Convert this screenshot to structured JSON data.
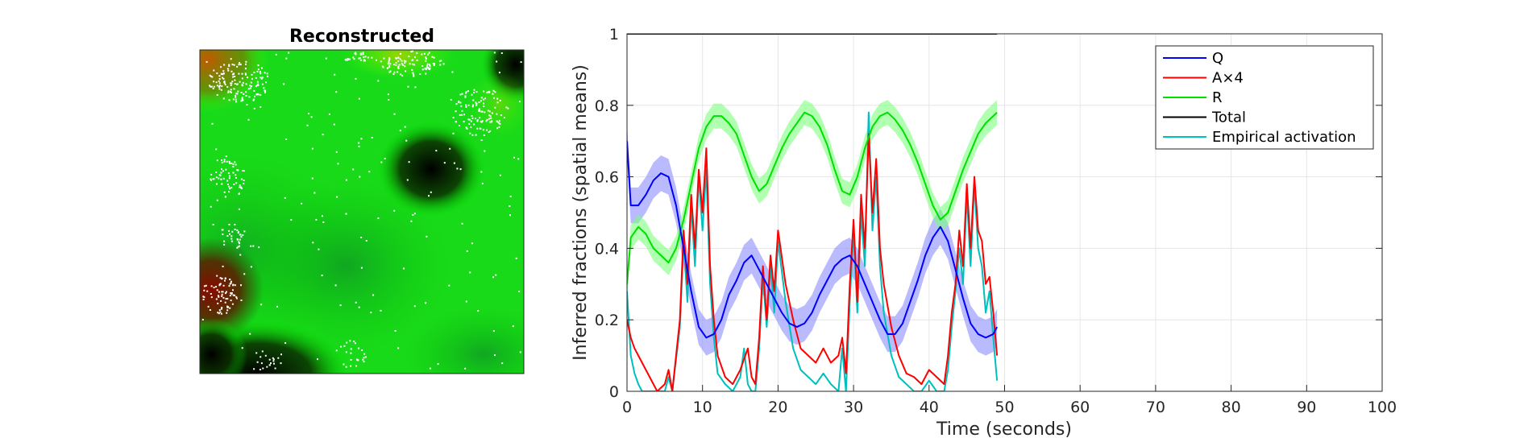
{
  "image_panel": {
    "title": "Reconstructed"
  },
  "chart_data": {
    "type": "line",
    "xlabel": "Time (seconds)",
    "ylabel": "Inferred fractions (spatial means)",
    "xlim": [
      0,
      100
    ],
    "ylim": [
      0,
      1
    ],
    "xticks": [
      0,
      10,
      20,
      30,
      40,
      50,
      60,
      70,
      80,
      90,
      100
    ],
    "yticks": [
      0,
      0.2,
      0.4,
      0.6,
      0.8,
      1
    ],
    "xtick_labels": [
      "0",
      "10",
      "20",
      "30",
      "40",
      "50",
      "60",
      "70",
      "80",
      "90",
      "100"
    ],
    "ytick_labels": [
      "0",
      "0.2",
      "0.4",
      "0.6",
      "0.8",
      "1"
    ],
    "grid": true,
    "legend_position": "top-right",
    "series": [
      {
        "name": "Q",
        "color": "#0000ff",
        "band_color": "#8c8cff",
        "x": [
          0,
          0.5,
          1.5,
          2.5,
          3.5,
          4.5,
          5.5,
          6.5,
          7.5,
          8.5,
          9.5,
          10.5,
          11.5,
          12.5,
          13.5,
          14.5,
          15.5,
          16.5,
          17.5,
          18.5,
          19.5,
          20.5,
          21.5,
          22.5,
          23.5,
          24.5,
          25.5,
          26.5,
          27.5,
          28.5,
          29.5,
          30.5,
          31.5,
          32.5,
          33.5,
          34.5,
          35.5,
          36.5,
          37.5,
          38.5,
          39.5,
          40.5,
          41.5,
          42.5,
          43.5,
          44.5,
          45.5,
          46.5,
          47.5,
          48.5,
          49
        ],
        "y": [
          0.7,
          0.52,
          0.52,
          0.55,
          0.59,
          0.61,
          0.6,
          0.52,
          0.4,
          0.28,
          0.18,
          0.15,
          0.16,
          0.2,
          0.27,
          0.31,
          0.36,
          0.38,
          0.34,
          0.3,
          0.26,
          0.22,
          0.19,
          0.18,
          0.19,
          0.22,
          0.27,
          0.31,
          0.35,
          0.37,
          0.38,
          0.35,
          0.3,
          0.25,
          0.2,
          0.16,
          0.16,
          0.19,
          0.25,
          0.31,
          0.38,
          0.43,
          0.46,
          0.42,
          0.34,
          0.26,
          0.19,
          0.16,
          0.15,
          0.16,
          0.18
        ],
        "band": 0.05
      },
      {
        "name": "A×4",
        "color": "#ff0000",
        "x": [
          0,
          0.5,
          1,
          2,
          3,
          4,
          5,
          5.5,
          6,
          7,
          7.5,
          8,
          8.5,
          9,
          9.5,
          10,
          10.5,
          11,
          11.5,
          12,
          13,
          14,
          15,
          16,
          16.5,
          17,
          17.5,
          18,
          18.5,
          19,
          19.5,
          20,
          21,
          22,
          23,
          24,
          25,
          26,
          27,
          28,
          28.5,
          29,
          29.5,
          30,
          30.5,
          31,
          31.5,
          32,
          32.5,
          33,
          33.5,
          34,
          35,
          36,
          37,
          38,
          39,
          40,
          41,
          42,
          42.5,
          43,
          43.5,
          44,
          44.5,
          45,
          45.5,
          46,
          46.5,
          47,
          47.5,
          48,
          48.5,
          49
        ],
        "y": [
          0.2,
          0.15,
          0.12,
          0.08,
          0.04,
          0.0,
          0.02,
          0.06,
          0.0,
          0.2,
          0.45,
          0.3,
          0.55,
          0.4,
          0.62,
          0.5,
          0.68,
          0.35,
          0.2,
          0.1,
          0.04,
          0.02,
          0.06,
          0.12,
          0.04,
          0.02,
          0.15,
          0.35,
          0.2,
          0.38,
          0.28,
          0.45,
          0.3,
          0.2,
          0.12,
          0.1,
          0.08,
          0.12,
          0.08,
          0.1,
          0.15,
          0.05,
          0.3,
          0.48,
          0.25,
          0.55,
          0.4,
          0.72,
          0.5,
          0.65,
          0.4,
          0.3,
          0.18,
          0.1,
          0.05,
          0.04,
          0.02,
          0.06,
          0.04,
          0.02,
          0.1,
          0.22,
          0.3,
          0.45,
          0.35,
          0.58,
          0.4,
          0.6,
          0.45,
          0.42,
          0.3,
          0.32,
          0.22,
          0.1
        ]
      },
      {
        "name": "R",
        "color": "#00e000",
        "band_color": "#7dff7d",
        "x": [
          0,
          0.5,
          1.5,
          2.5,
          3.5,
          4.5,
          5.5,
          6.5,
          7.5,
          8.5,
          9.5,
          10.5,
          11.5,
          12.5,
          13.5,
          14.5,
          15.5,
          16.5,
          17.5,
          18.5,
          19.5,
          20.5,
          21.5,
          22.5,
          23.5,
          24.5,
          25.5,
          26.5,
          27.5,
          28.5,
          29.5,
          30.5,
          31.5,
          32.5,
          33.5,
          34.5,
          35.5,
          36.5,
          37.5,
          38.5,
          39.5,
          40.5,
          41.5,
          42.5,
          43.5,
          44.5,
          45.5,
          46.5,
          47.5,
          48.5,
          49
        ],
        "y": [
          0.3,
          0.43,
          0.46,
          0.44,
          0.4,
          0.38,
          0.36,
          0.4,
          0.48,
          0.58,
          0.68,
          0.74,
          0.77,
          0.77,
          0.75,
          0.72,
          0.66,
          0.6,
          0.56,
          0.58,
          0.63,
          0.68,
          0.72,
          0.75,
          0.78,
          0.77,
          0.74,
          0.69,
          0.62,
          0.56,
          0.55,
          0.6,
          0.68,
          0.74,
          0.77,
          0.78,
          0.76,
          0.73,
          0.69,
          0.64,
          0.58,
          0.52,
          0.48,
          0.5,
          0.56,
          0.62,
          0.67,
          0.72,
          0.75,
          0.77,
          0.78
        ],
        "band": 0.035
      },
      {
        "name": "Total",
        "color": "#000000",
        "x": [
          0,
          49
        ],
        "y": [
          1,
          1
        ]
      },
      {
        "name": "Empirical activation",
        "color": "#00bfbf",
        "x": [
          0,
          0.5,
          1,
          1.5,
          2,
          3,
          4,
          5,
          5.5,
          6,
          7,
          7.5,
          8,
          8.5,
          9,
          9.5,
          10,
          10.5,
          11,
          11.5,
          12,
          13,
          14,
          15,
          15.5,
          16,
          16.5,
          17,
          17.5,
          18,
          18.5,
          19,
          19.5,
          20,
          21,
          22,
          23,
          24,
          25,
          26,
          27,
          28,
          28.5,
          29,
          29.5,
          30,
          30.5,
          31,
          31.5,
          32,
          32.5,
          33,
          33.5,
          34,
          35,
          36,
          37,
          38,
          39,
          40,
          41,
          42,
          42.5,
          43,
          43.5,
          44,
          44.5,
          45,
          45.5,
          46,
          46.5,
          47,
          47.5,
          48,
          48.5,
          49
        ],
        "y": [
          0.28,
          0.1,
          0.05,
          0.02,
          0.0,
          0.0,
          0.0,
          0.0,
          0.04,
          0.0,
          0.18,
          0.42,
          0.25,
          0.52,
          0.35,
          0.6,
          0.45,
          0.62,
          0.3,
          0.15,
          0.05,
          0.02,
          0.0,
          0.04,
          0.12,
          0.02,
          0.0,
          0.0,
          0.12,
          0.32,
          0.18,
          0.35,
          0.22,
          0.42,
          0.25,
          0.12,
          0.06,
          0.04,
          0.02,
          0.05,
          0.02,
          0.0,
          0.12,
          0.0,
          0.25,
          0.45,
          0.22,
          0.5,
          0.35,
          0.78,
          0.45,
          0.6,
          0.35,
          0.22,
          0.1,
          0.04,
          0.02,
          0.0,
          0.0,
          0.03,
          0.0,
          0.0,
          0.06,
          0.18,
          0.28,
          0.4,
          0.3,
          0.55,
          0.35,
          0.58,
          0.4,
          0.35,
          0.22,
          0.28,
          0.15,
          0.03
        ]
      }
    ]
  }
}
